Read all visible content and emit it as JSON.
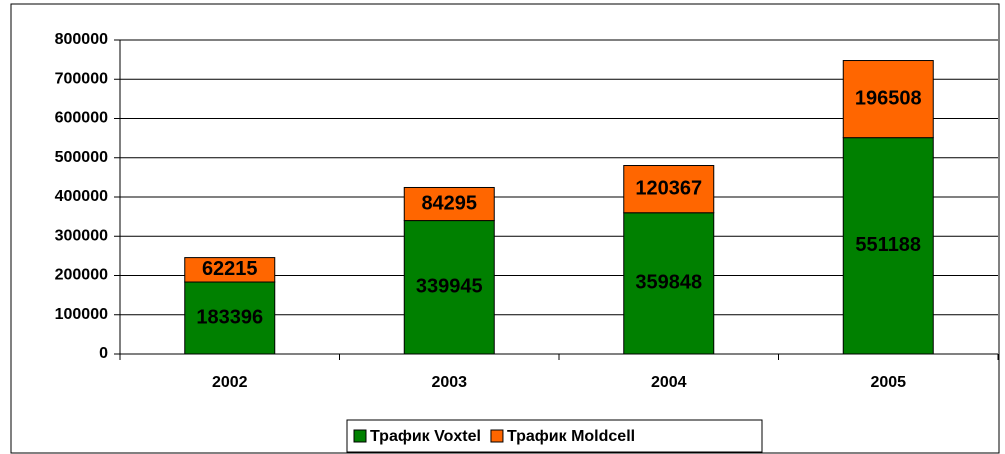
{
  "chart_data": {
    "type": "stacked_bar",
    "categories": [
      "2002",
      "2003",
      "2004",
      "2005"
    ],
    "series": [
      {
        "name": "Трафик Voxtel",
        "color": "#008000",
        "values": [
          183396,
          339945,
          359848,
          551188
        ]
      },
      {
        "name": "Трафик Moldcell",
        "color": "#ff6600",
        "values": [
          62215,
          84295,
          120367,
          196508
        ]
      }
    ],
    "ylim": [
      0,
      800000
    ],
    "yticks": [
      0,
      100000,
      200000,
      300000,
      400000,
      500000,
      600000,
      700000,
      800000
    ],
    "grid": true,
    "legend": "bottom"
  }
}
